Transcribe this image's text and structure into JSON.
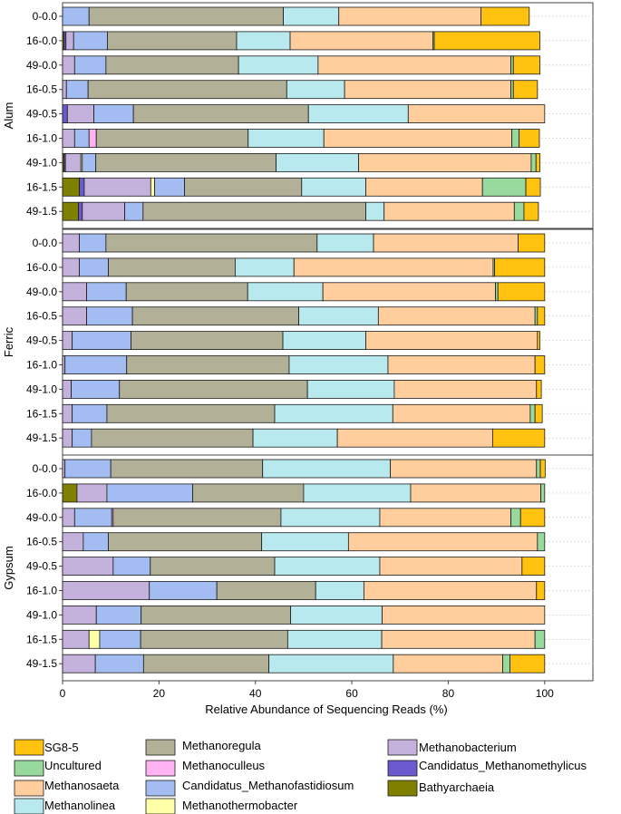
{
  "chart_data": {
    "type": "bar",
    "orientation": "horizontal",
    "stacked": true,
    "xlabel": "Relative Abundance of Sequencing Reads (%)",
    "xlim": [
      0,
      110
    ],
    "xticks": [
      0,
      20,
      40,
      60,
      80,
      100
    ],
    "grid": "horizontal dotted",
    "legend_position": "bottom",
    "series": [
      {
        "name": "Bathyarchaeia",
        "color": "#808000"
      },
      {
        "name": "Candidatus_Methanomethylicus",
        "color": "#6A5ACD"
      },
      {
        "name": "Methanobacterium",
        "color": "#C4B2DC"
      },
      {
        "name": "Methanothermobacter",
        "color": "#FFFFA8"
      },
      {
        "name": "Candidatus_Methanofastidiosum",
        "color": "#A3BDF2"
      },
      {
        "name": "Methanoculleus",
        "color": "#FFB3F2"
      },
      {
        "name": "Methanoregula",
        "color": "#B2B197"
      },
      {
        "name": "Methanolinea",
        "color": "#B8E9EF"
      },
      {
        "name": "Methanosaeta",
        "color": "#FFCE9C"
      },
      {
        "name": "Uncultured",
        "color": "#98D99E"
      },
      {
        "name": "SG8-5",
        "color": "#FFC20E"
      }
    ],
    "panels": [
      {
        "label": "Alum",
        "rows": [
          {
            "label": "0-0.0",
            "values": [
              0,
              0,
              0,
              0,
              5.5,
              0,
              40.3,
              11.5,
              29.5,
              0,
              10
            ]
          },
          {
            "label": "16-0.0",
            "values": [
              0.3,
              0.4,
              1.6,
              0,
              7,
              0,
              26.8,
              11.1,
              29.6,
              0.3,
              21.9
            ]
          },
          {
            "label": "49-0.0",
            "values": [
              0,
              0,
              2.5,
              0,
              6.5,
              0,
              27.5,
              16.5,
              40,
              0.5,
              5.5
            ]
          },
          {
            "label": "16-0.5",
            "values": [
              0,
              0,
              0.8,
              0,
              4.5,
              0,
              41.2,
              12,
              34.5,
              0.5,
              5
            ]
          },
          {
            "label": "49-0.5",
            "values": [
              0,
              1,
              5.5,
              0,
              8.2,
              0,
              36.3,
              20.7,
              28.3,
              0,
              0
            ]
          },
          {
            "label": "16-1.0",
            "values": [
              0,
              0,
              2.5,
              0,
              3,
              1.5,
              31.5,
              15.7,
              39,
              1.5,
              4.2
            ]
          },
          {
            "label": "49-1.0",
            "values": [
              0.3,
              0.3,
              3.2,
              0.3,
              2.8,
              0,
              37.4,
              17.1,
              35.8,
              1,
              0.8
            ]
          },
          {
            "label": "16-1.5",
            "values": [
              3.5,
              1,
              13.8,
              0.8,
              6.2,
              0,
              24.3,
              13.3,
              24.2,
              9,
              3
            ]
          },
          {
            "label": "49-1.5",
            "values": [
              3.3,
              0.8,
              8.8,
              0,
              3.8,
              0,
              46.2,
              3.8,
              27,
              2,
              3
            ]
          }
        ]
      },
      {
        "label": "Ferric",
        "rows": [
          {
            "label": "0-0.0",
            "values": [
              0,
              0,
              3.5,
              0,
              5.5,
              0,
              43.8,
              11.7,
              30,
              0,
              5.5
            ]
          },
          {
            "label": "16-0.0",
            "values": [
              0,
              0,
              3.5,
              0,
              6,
              0,
              26.3,
              12.2,
              41.3,
              0.3,
              10.4
            ]
          },
          {
            "label": "49-0.0",
            "values": [
              0,
              0,
              5,
              0,
              8.2,
              0,
              25.2,
              15.6,
              35.8,
              0.5,
              9.7
            ]
          },
          {
            "label": "16-0.5",
            "values": [
              0,
              0,
              5,
              0,
              9.5,
              0,
              34.5,
              16.5,
              32.5,
              0.5,
              1.5
            ]
          },
          {
            "label": "49-0.5",
            "values": [
              0,
              0,
              2,
              0,
              12.2,
              0,
              31.5,
              17.2,
              35.6,
              0,
              0.5
            ]
          },
          {
            "label": "16-1.0",
            "values": [
              0,
              0,
              0.5,
              0,
              12.8,
              0,
              33.7,
              20.5,
              30.5,
              0,
              2
            ]
          },
          {
            "label": "49-1.0",
            "values": [
              0,
              0,
              1.8,
              0,
              10,
              0,
              39,
              18,
              29.5,
              0,
              1
            ]
          },
          {
            "label": "16-1.5",
            "values": [
              0,
              0,
              2,
              0,
              7.2,
              0,
              34.8,
              24.5,
              28.5,
              1,
              1.5
            ]
          },
          {
            "label": "49-1.5",
            "values": [
              0,
              0,
              2,
              0,
              4,
              0,
              33.5,
              17.5,
              32.2,
              0,
              10.8
            ]
          }
        ]
      },
      {
        "label": "Gypsum",
        "rows": [
          {
            "label": "0-0.0",
            "values": [
              0,
              0,
              0.5,
              0,
              9.5,
              0,
              31.5,
              26.5,
              30.3,
              0.8,
              1
            ]
          },
          {
            "label": "16-0.0",
            "values": [
              3,
              0,
              6.2,
              0,
              17.8,
              0,
              23,
              22.2,
              27,
              0.8,
              0
            ]
          },
          {
            "label": "49-0.0",
            "values": [
              0,
              0,
              2.5,
              0,
              7.7,
              0.3,
              34.8,
              20.5,
              27.2,
              2,
              5
            ]
          },
          {
            "label": "16-0.5",
            "values": [
              0,
              0,
              4.3,
              0,
              5.2,
              0,
              31.8,
              18,
              39.2,
              1.5,
              0
            ]
          },
          {
            "label": "49-0.5",
            "values": [
              0,
              0,
              10.5,
              0,
              7.7,
              0,
              25.8,
              21.8,
              29.5,
              0,
              4.7
            ]
          },
          {
            "label": "16-1.0",
            "values": [
              0,
              0,
              18,
              0,
              14,
              0,
              20.5,
              10,
              35.8,
              0,
              1.7
            ]
          },
          {
            "label": "49-1.0",
            "values": [
              0,
              0,
              7,
              0,
              9.3,
              0,
              31,
              19,
              33.7,
              0,
              0
            ]
          },
          {
            "label": "16-1.5",
            "values": [
              0,
              0,
              5.5,
              2.2,
              8.5,
              0,
              30.5,
              19.5,
              31.8,
              2,
              0
            ]
          },
          {
            "label": "49-1.5",
            "values": [
              0,
              0,
              6.8,
              0,
              10,
              0,
              26,
              25.8,
              22.7,
              1.5,
              7.2
            ]
          }
        ]
      }
    ],
    "legend_layout": [
      [
        "SG8-5",
        "Uncultured",
        "Methanosaeta",
        "Methanolinea"
      ],
      [
        "Methanoregula",
        "Methanoculleus",
        "Candidatus_Methanofastidiosum",
        "Methanothermobacter"
      ],
      [
        "Methanobacterium",
        "Candidatus_Methanomethylicus",
        "Bathyarchaeia"
      ]
    ]
  }
}
